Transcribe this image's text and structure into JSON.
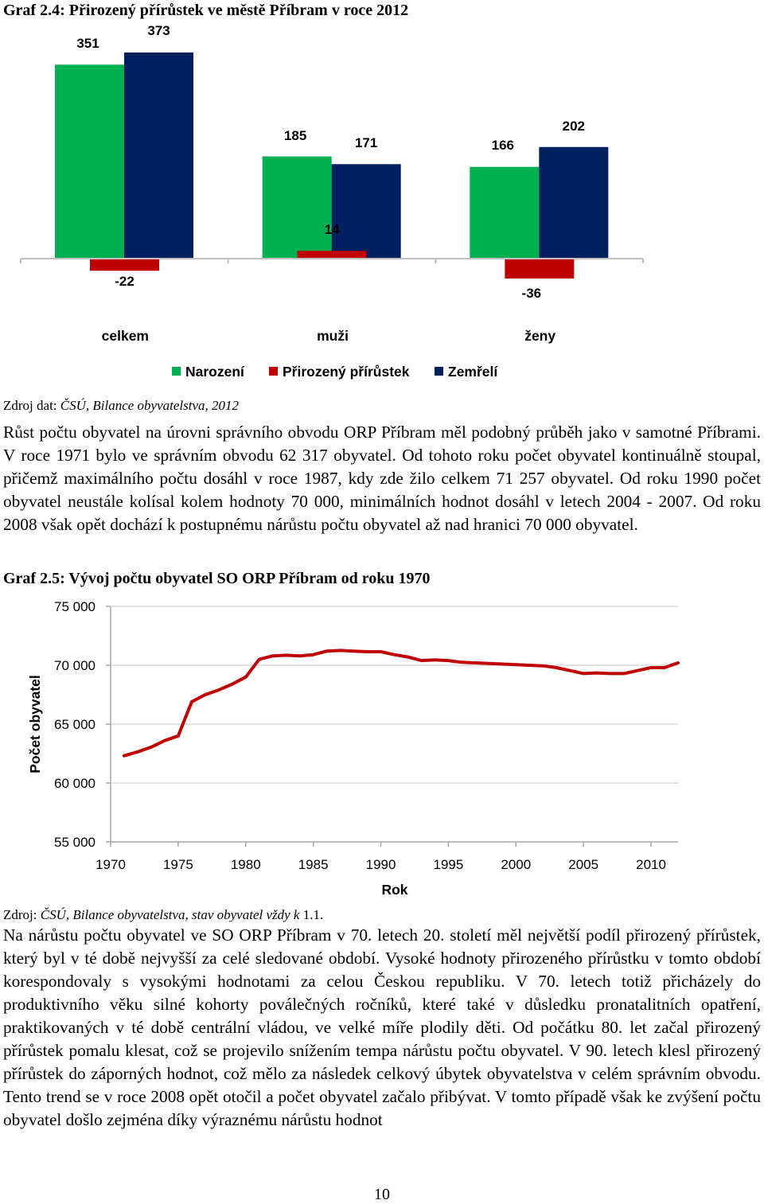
{
  "figure1": {
    "title": "Graf 2.4: Přirozený přírůstek ve městě Příbram v roce 2012",
    "source_prefix": "Zdroj dat: ",
    "source_italic": "ČSÚ, Bilance obyvatelstva, 2012"
  },
  "paragraph1": "Růst počtu obyvatel na úrovni správního obvodu ORP Příbram měl podobný průběh jako v samotné Příbrami. V roce 1971 bylo ve správním obvodu 62 317 obyvatel. Od tohoto roku počet obyvatel kontinuálně stoupal, přičemž maximálního počtu dosáhl v roce 1987, kdy zde žilo celkem 71 257 obyvatel. Od roku 1990 počet obyvatel neustále kolísal kolem hodnoty 70 000, minimálních hodnot dosáhl v letech 2004 - 2007. Od roku 2008 však opět dochází k postupnému nárůstu počtu obyvatel až nad hranici 70 000 obyvatel.",
  "figure2": {
    "title": "Graf 2.5: Vývoj počtu obyvatel SO ORP Příbram od roku 1970",
    "source_prefix": "Zdroj: ",
    "source_italic": "ČSÚ, Bilance obyvatelstva, stav obyvatel vždy k ",
    "source_suffix": "1.1."
  },
  "paragraph2": "Na nárůstu počtu obyvatel ve SO ORP Příbram v 70. letech 20. století měl největší podíl přirozený přírůstek, který byl v té době nejvyšší za celé sledované období. Vysoké hodnoty přirozeného přírůstku v tomto období korespondovaly s vysokými hodnotami za celou Českou republiku. V 70. letech totiž přicházely do produktivního věku silné kohorty poválečných ročníků, které také v důsledku pronatalitních opatření, praktikovaných v té době centrální vládou, ve velké míře plodily děti. Od počátku 80. let začal přirozený přírůstek pomalu klesat, což se projevilo snížením tempa nárůstu počtu obyvatel. V 90. letech klesl přirozený přírůstek do záporných hodnot, což mělo za následek celkový úbytek obyvatelstva v celém správním obvodu. Tento trend se v roce 2008 opět otočil a počet obyvatel začalo přibývat. V tomto případě však ke zvýšení počtu obyvatel došlo zejména díky výraznému nárůstu hodnot",
  "page_number": "10",
  "chart_data": [
    {
      "type": "bar",
      "title": "Graf 2.4: Přirozený přírůstek ve městě Příbram v roce 2012",
      "categories": [
        "celkem",
        "muži",
        "ženy"
      ],
      "series": [
        {
          "name": "Narození",
          "color": "#00b050",
          "values": [
            351,
            185,
            166
          ]
        },
        {
          "name": "Přirozený přírůstek",
          "color": "#c00000",
          "values": [
            -22,
            14,
            -36
          ]
        },
        {
          "name": "Zemřelí",
          "color": "#002060",
          "values": [
            373,
            171,
            202
          ]
        }
      ],
      "legend_position": "bottom",
      "grid": false,
      "value_labels": true
    },
    {
      "type": "line",
      "title": "Graf 2.5: Vývoj počtu obyvatel SO ORP Příbram od roku 1970",
      "xlabel": "Rok",
      "ylabel": "Počet obyvatel",
      "xlim": [
        1970,
        2012
      ],
      "ylim": [
        55000,
        75000
      ],
      "x_ticks": [
        1970,
        1975,
        1980,
        1985,
        1990,
        1995,
        2000,
        2005,
        2010
      ],
      "y_ticks": [
        "55 000",
        "60 000",
        "65 000",
        "70 000",
        "75 000"
      ],
      "y_tick_values": [
        55000,
        60000,
        65000,
        70000,
        75000
      ],
      "grid": true,
      "series": [
        {
          "color": "#c00000",
          "x": [
            1971,
            1972,
            1973,
            1974,
            1975,
            1976,
            1977,
            1978,
            1979,
            1980,
            1981,
            1982,
            1983,
            1984,
            1985,
            1986,
            1987,
            1988,
            1989,
            1990,
            1991,
            1992,
            1993,
            1994,
            1995,
            1996,
            1997,
            1998,
            1999,
            2000,
            2001,
            2002,
            2003,
            2004,
            2005,
            2006,
            2007,
            2008,
            2009,
            2010,
            2011,
            2012
          ],
          "y": [
            62317,
            62650,
            63050,
            63600,
            64000,
            66900,
            67500,
            67900,
            68400,
            69000,
            70500,
            70800,
            70850,
            70800,
            70900,
            71200,
            71257,
            71200,
            71150,
            71150,
            70900,
            70700,
            70400,
            70450,
            70400,
            70250,
            70200,
            70150,
            70100,
            70050,
            70000,
            69950,
            69800,
            69550,
            69300,
            69350,
            69300,
            69300,
            69550,
            69800,
            69800,
            70200
          ]
        }
      ]
    }
  ]
}
